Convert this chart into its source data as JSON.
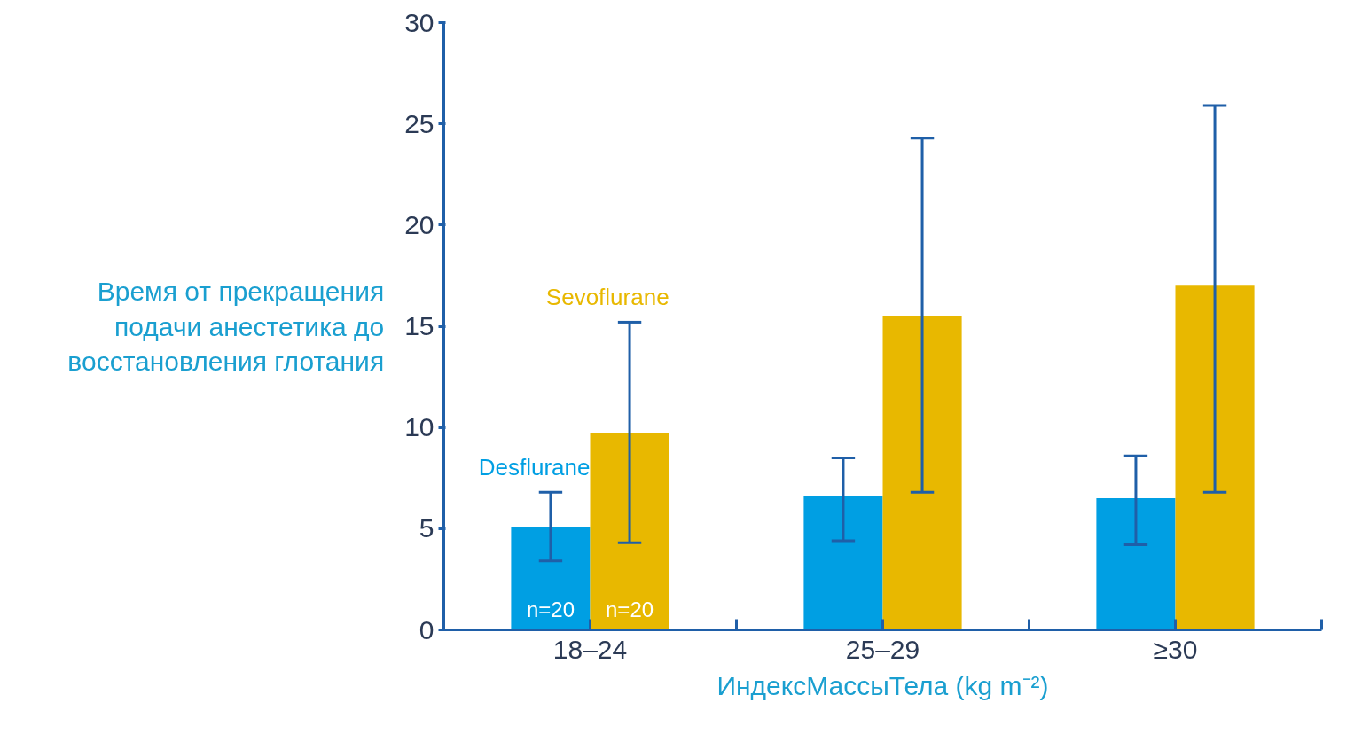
{
  "chart_data": {
    "type": "bar",
    "categories": [
      "18–24",
      "25–29",
      "≥30"
    ],
    "xlabel": "ИндексМассыТела (kg m⁻²)",
    "ylabel": "Время от прекращения подачи анестетика до восстановления глотания",
    "series": [
      {
        "name": "Desflurane",
        "color": "#009fe3",
        "values": [
          5.1,
          6.6,
          6.5
        ],
        "errors": [
          [
            3.4,
            6.8
          ],
          [
            4.4,
            8.5
          ],
          [
            4.2,
            8.6
          ]
        ]
      },
      {
        "name": "Sevoflurane",
        "color": "#e8b800",
        "values": [
          9.7,
          15.5,
          17.0
        ],
        "errors": [
          [
            4.3,
            15.2
          ],
          [
            6.8,
            24.3
          ],
          [
            6.8,
            25.9
          ]
        ]
      }
    ],
    "annotations": [
      "n=20",
      "n=20"
    ],
    "ylim": [
      0,
      30
    ],
    "yticks": [
      0,
      5,
      10,
      15,
      20,
      25,
      30
    ],
    "grid": false
  }
}
